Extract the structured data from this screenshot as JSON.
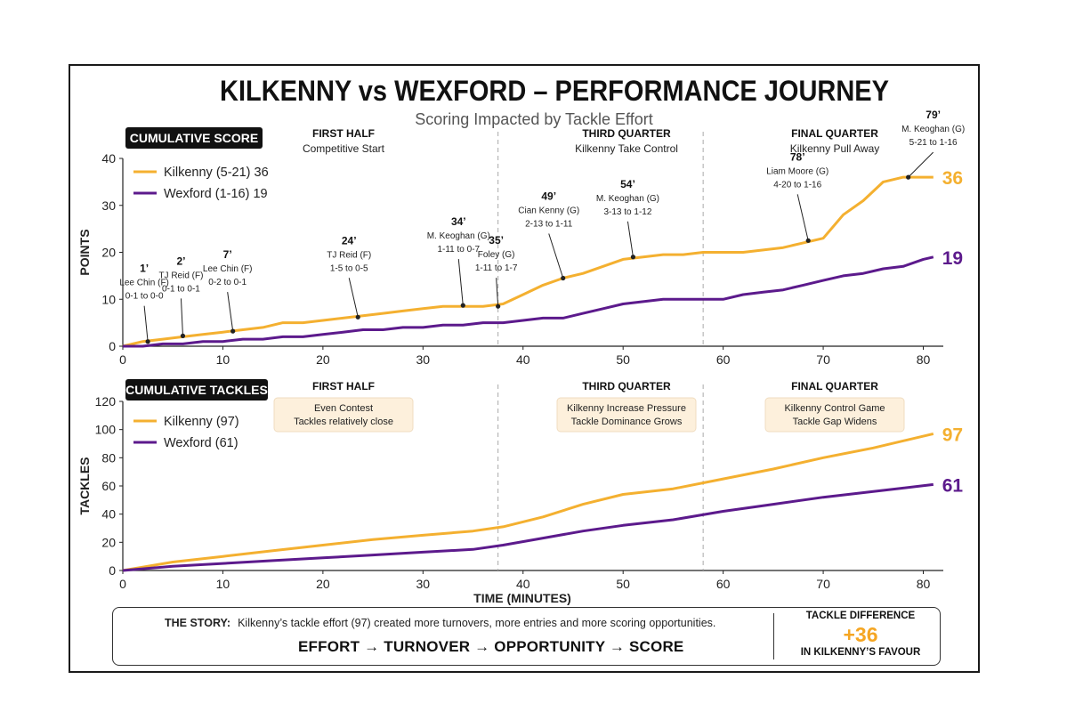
{
  "title": "KILKENNY vs WEXFORD – PERFORMANCE JOURNEY",
  "subtitle": "Scoring Impacted by Tackle Effort",
  "colors": {
    "kilkenny": "#f4b030",
    "wexford": "#5c1a8c",
    "dark": "#111111",
    "note_bg": "#fdf0dc"
  },
  "chart_data": [
    {
      "type": "line",
      "panel_label": "CUMULATIVE SCORE",
      "ylabel": "POINTS",
      "xlim": [
        0,
        82
      ],
      "ylim": [
        0,
        40
      ],
      "x_ticks": [
        "0",
        "10",
        "20",
        "30",
        "40",
        "50",
        "60",
        "70",
        "80"
      ],
      "y_ticks": [
        "0",
        "10",
        "20",
        "30",
        "40"
      ],
      "phase_dividers": [
        37.5,
        58
      ],
      "phases": [
        {
          "title": "FIRST HALF",
          "subtitle": "Competitive Start"
        },
        {
          "title": "THIRD QUARTER",
          "subtitle": "Kilkenny Take Control"
        },
        {
          "title": "FINAL QUARTER",
          "subtitle": "Kilkenny Pull Away"
        }
      ],
      "series": [
        {
          "name": "Kilkenny (5-21) 36",
          "end_label": "36",
          "x": [
            0,
            2,
            4,
            6,
            8,
            10,
            12,
            14,
            16,
            18,
            20,
            22,
            24,
            26,
            28,
            30,
            32,
            34,
            36,
            38,
            40,
            42,
            44,
            46,
            48,
            50,
            52,
            54,
            56,
            58,
            60,
            62,
            64,
            66,
            68,
            70,
            72,
            74,
            76,
            78,
            80,
            81
          ],
          "values": [
            0,
            1,
            1.5,
            2,
            2.5,
            3,
            3.5,
            4,
            5,
            5,
            5.5,
            6,
            6.5,
            7,
            7.5,
            8,
            8.5,
            8.5,
            8.5,
            9,
            11,
            13,
            14.5,
            15.5,
            17,
            18.5,
            19,
            19.5,
            19.5,
            20,
            20,
            20,
            20.5,
            21,
            22,
            23,
            28,
            31,
            35,
            36,
            36,
            36
          ]
        },
        {
          "name": "Wexford (1-16) 19",
          "end_label": "19",
          "x": [
            0,
            2,
            4,
            6,
            8,
            10,
            12,
            14,
            16,
            18,
            20,
            22,
            24,
            26,
            28,
            30,
            32,
            34,
            36,
            38,
            40,
            42,
            44,
            46,
            48,
            50,
            52,
            54,
            56,
            58,
            60,
            62,
            64,
            66,
            68,
            70,
            72,
            74,
            76,
            78,
            80,
            81
          ],
          "values": [
            0,
            0,
            0.5,
            0.5,
            1,
            1,
            1.5,
            1.5,
            2,
            2,
            2.5,
            3,
            3.5,
            3.5,
            4,
            4,
            4.5,
            4.5,
            5,
            5,
            5.5,
            6,
            6,
            7,
            8,
            9,
            9.5,
            10,
            10,
            10,
            10,
            11,
            11.5,
            12,
            13,
            14,
            15,
            15.5,
            16.5,
            17,
            18.5,
            19
          ]
        }
      ],
      "annotations": [
        {
          "x": 2.5,
          "y": 1,
          "minute": "1’",
          "line1": "Lee Chin (F)",
          "line2": "0-1 to 0-0"
        },
        {
          "x": 6,
          "y": 2.2,
          "minute": "2’",
          "line1": "TJ Reid (F)",
          "line2": "0-1 to 0-1"
        },
        {
          "x": 11,
          "y": 3.2,
          "minute": "7’",
          "line1": "Lee Chin (F)",
          "line2": "0-2 to 0-1"
        },
        {
          "x": 23.5,
          "y": 6.2,
          "minute": "24’",
          "line1": "TJ Reid (F)",
          "line2": "1-5 to 0-5"
        },
        {
          "x": 34,
          "y": 8.7,
          "minute": "34’",
          "line1": "M. Keoghan (G)",
          "line2": "1-11 to 0-7"
        },
        {
          "x": 37.5,
          "y": 8.5,
          "minute": "35’",
          "line1": "Foley (G)",
          "line2": "1-11 to 1-7"
        },
        {
          "x": 44,
          "y": 14.5,
          "minute": "49’",
          "line1": "Cian Kenny (G)",
          "line2": "2-13 to 1-11"
        },
        {
          "x": 51,
          "y": 19,
          "minute": "54’",
          "line1": "M. Keoghan (G)",
          "line2": "3-13 to 1-12"
        },
        {
          "x": 68.5,
          "y": 22.5,
          "minute": "78’",
          "line1": "Liam Moore (G)",
          "line2": "4-20 to 1-16"
        },
        {
          "x": 78.5,
          "y": 36,
          "minute": "79’",
          "line1": "M. Keoghan (G)",
          "line2": "5-21 to 1-16"
        }
      ]
    },
    {
      "type": "line",
      "panel_label": "CUMULATIVE TACKLES",
      "ylabel": "TACKLES",
      "xlabel": "TIME (MINUTES)",
      "xlim": [
        0,
        82
      ],
      "ylim": [
        0,
        120
      ],
      "x_ticks": [
        "0",
        "10",
        "20",
        "30",
        "40",
        "50",
        "60",
        "70",
        "80"
      ],
      "y_ticks": [
        "0",
        "20",
        "40",
        "60",
        "80",
        "100",
        "120"
      ],
      "phase_dividers": [
        37.5,
        58
      ],
      "phases": [
        {
          "title": "FIRST HALF",
          "note1": "Even Contest",
          "note2": "Tackles relatively close"
        },
        {
          "title": "THIRD QUARTER",
          "note1": "Kilkenny Increase Pressure",
          "note2": "Tackle Dominance Grows"
        },
        {
          "title": "FINAL QUARTER",
          "note1": "Kilkenny Control Game",
          "note2": "Tackle Gap Widens"
        }
      ],
      "series": [
        {
          "name": "Kilkenny (97)",
          "end_label": "97",
          "x": [
            0,
            5,
            10,
            15,
            20,
            25,
            30,
            35,
            38,
            42,
            46,
            50,
            55,
            60,
            65,
            70,
            75,
            81
          ],
          "values": [
            0,
            6,
            10,
            14,
            18,
            22,
            25,
            28,
            31,
            38,
            47,
            54,
            58,
            65,
            72,
            80,
            87,
            97
          ]
        },
        {
          "name": "Wexford (61)",
          "end_label": "61",
          "x": [
            0,
            5,
            10,
            15,
            20,
            25,
            30,
            35,
            38,
            42,
            46,
            50,
            55,
            60,
            65,
            70,
            75,
            81
          ],
          "values": [
            0,
            3,
            5,
            7,
            9,
            11,
            13,
            15,
            18,
            23,
            28,
            32,
            36,
            42,
            47,
            52,
            56,
            61
          ]
        }
      ]
    }
  ],
  "story": {
    "label": "THE STORY:",
    "text": "Kilkenny’s tackle effort (97) created more turnovers, more entries and more scoring opportunities.",
    "flow": "EFFORT  →  TURNOVER  →  OPPORTUNITY  →  SCORE",
    "diff_label": "TACKLE DIFFERENCE",
    "diff_value": "+36",
    "diff_sub": "IN KILKENNY’S FAVOUR"
  }
}
